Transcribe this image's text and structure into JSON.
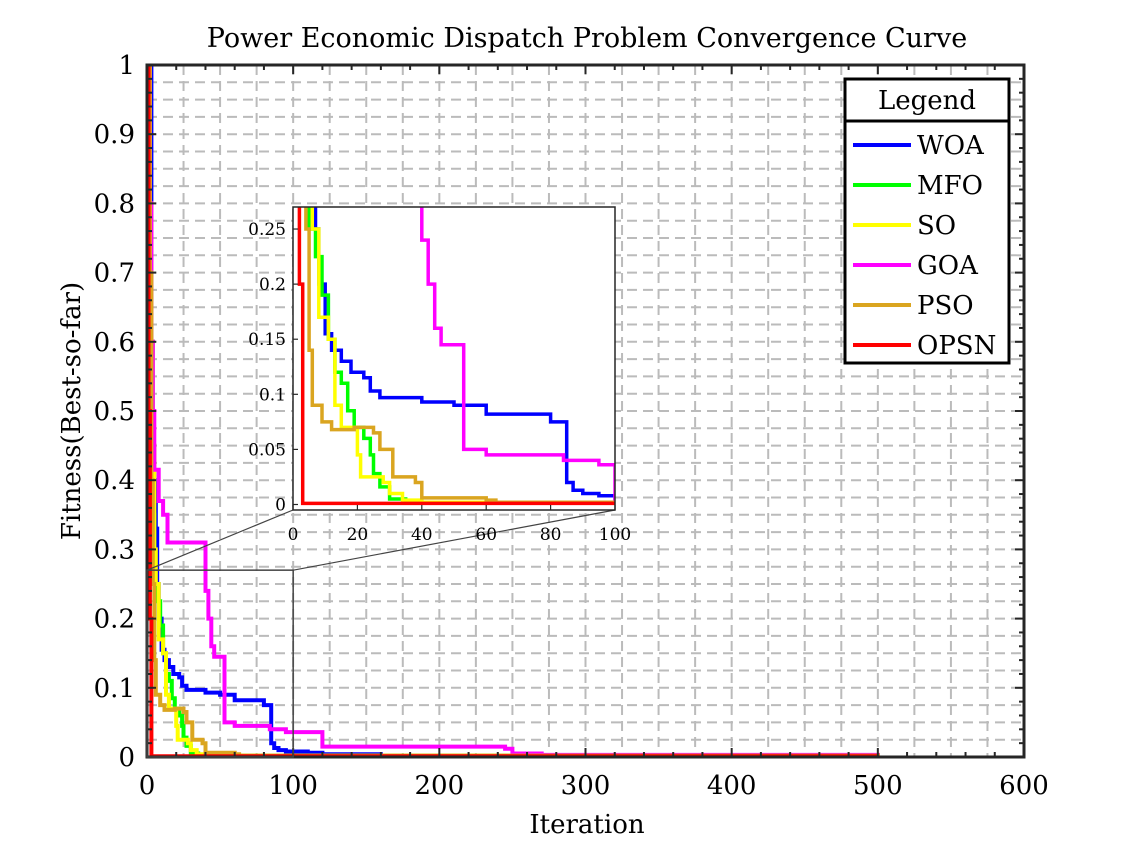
{
  "chart_data": {
    "type": "line",
    "title": "Power Economic Dispatch Problem Convergence Curve",
    "xlabel": "Iteration",
    "ylabel": "Fitness(Best-so-far)",
    "xlim": [
      0,
      600
    ],
    "ylim": [
      0,
      1
    ],
    "xticks": [
      0,
      100,
      200,
      300,
      400,
      500,
      600
    ],
    "yticks": [
      0,
      0.1,
      0.2,
      0.3,
      0.4,
      0.5,
      0.6,
      0.7,
      0.8,
      0.9,
      1
    ],
    "xtick_labels": [
      "0",
      "100",
      "200",
      "300",
      "400",
      "500",
      "600"
    ],
    "ytick_labels": [
      "0",
      "0.1",
      "0.2",
      "0.3",
      "0.4",
      "0.5",
      "0.6",
      "0.7",
      "0.8",
      "0.9",
      "1"
    ],
    "grid": "dashed",
    "legend": {
      "title": "Legend",
      "position": "top-right"
    },
    "series": [
      {
        "name": "WOA",
        "color": "#0000ff",
        "steps": [
          [
            1,
            1.0
          ],
          [
            3,
            0.6
          ],
          [
            4,
            0.45
          ],
          [
            5,
            0.4
          ],
          [
            6,
            0.33
          ],
          [
            7,
            0.25
          ],
          [
            8,
            0.2
          ],
          [
            10,
            0.155
          ],
          [
            12,
            0.14
          ],
          [
            15,
            0.13
          ],
          [
            18,
            0.12
          ],
          [
            22,
            0.115
          ],
          [
            24,
            0.103
          ],
          [
            27,
            0.097
          ],
          [
            40,
            0.093
          ],
          [
            50,
            0.09
          ],
          [
            60,
            0.082
          ],
          [
            80,
            0.075
          ],
          [
            85,
            0.02
          ],
          [
            87,
            0.013
          ],
          [
            90,
            0.01
          ],
          [
            95,
            0.008
          ],
          [
            110,
            0.006
          ],
          [
            120,
            0.004
          ],
          [
            160,
            0.002
          ],
          [
            500,
            0.001
          ]
        ]
      },
      {
        "name": "MFO",
        "color": "#00ff00",
        "steps": [
          [
            1,
            1.0
          ],
          [
            2,
            0.7
          ],
          [
            3,
            0.5
          ],
          [
            4,
            0.35
          ],
          [
            5,
            0.25
          ],
          [
            7,
            0.225
          ],
          [
            9,
            0.19
          ],
          [
            11,
            0.15
          ],
          [
            13,
            0.12
          ],
          [
            15,
            0.11
          ],
          [
            17,
            0.085
          ],
          [
            19,
            0.07
          ],
          [
            22,
            0.06
          ],
          [
            24,
            0.045
          ],
          [
            25,
            0.028
          ],
          [
            27,
            0.016
          ],
          [
            30,
            0.005
          ],
          [
            35,
            0.003
          ],
          [
            40,
            0.002
          ],
          [
            500,
            0.001
          ]
        ]
      },
      {
        "name": "SO",
        "color": "#ffff00",
        "steps": [
          [
            1,
            1.0
          ],
          [
            2,
            0.8
          ],
          [
            3,
            0.6
          ],
          [
            4,
            0.45
          ],
          [
            5,
            0.3
          ],
          [
            6,
            0.25
          ],
          [
            8,
            0.17
          ],
          [
            10,
            0.17
          ],
          [
            11,
            0.15
          ],
          [
            13,
            0.09
          ],
          [
            15,
            0.07
          ],
          [
            17,
            0.07
          ],
          [
            20,
            0.045
          ],
          [
            21,
            0.025
          ],
          [
            28,
            0.02
          ],
          [
            30,
            0.01
          ],
          [
            34,
            0.004
          ],
          [
            40,
            0.002
          ],
          [
            500,
            0.001
          ]
        ]
      },
      {
        "name": "GOA",
        "color": "#ff00ff",
        "steps": [
          [
            1,
            1.0
          ],
          [
            2,
            0.8
          ],
          [
            3,
            0.6
          ],
          [
            4,
            0.5
          ],
          [
            5,
            0.415
          ],
          [
            8,
            0.37
          ],
          [
            11,
            0.35
          ],
          [
            14,
            0.31
          ],
          [
            39,
            0.31
          ],
          [
            40,
            0.24
          ],
          [
            42,
            0.2
          ],
          [
            44,
            0.16
          ],
          [
            46,
            0.145
          ],
          [
            50,
            0.145
          ],
          [
            53,
            0.05
          ],
          [
            60,
            0.045
          ],
          [
            84,
            0.04
          ],
          [
            95,
            0.036
          ],
          [
            120,
            0.015
          ],
          [
            245,
            0.012
          ],
          [
            250,
            0.005
          ],
          [
            270,
            0.003
          ],
          [
            500,
            0.002
          ]
        ]
      },
      {
        "name": "PSO",
        "color": "#daa520",
        "steps": [
          [
            1,
            1.0
          ],
          [
            2,
            0.7
          ],
          [
            3,
            0.4
          ],
          [
            4,
            0.25
          ],
          [
            5,
            0.14
          ],
          [
            6,
            0.09
          ],
          [
            9,
            0.075
          ],
          [
            12,
            0.068
          ],
          [
            19,
            0.07
          ],
          [
            25,
            0.065
          ],
          [
            27,
            0.05
          ],
          [
            31,
            0.025
          ],
          [
            38,
            0.02
          ],
          [
            40,
            0.006
          ],
          [
            60,
            0.004
          ],
          [
            63,
            0.002
          ],
          [
            70,
            0.002
          ],
          [
            500,
            0.001
          ]
        ]
      },
      {
        "name": "OPSN",
        "color": "#ff0000",
        "steps": [
          [
            0,
            1.0
          ],
          [
            1,
            0.5
          ],
          [
            2,
            0.2
          ],
          [
            3,
            0.001
          ],
          [
            500,
            0.001
          ]
        ]
      }
    ],
    "inset": {
      "xlim": [
        0,
        100
      ],
      "ylim": [
        -0.005,
        0.27
      ],
      "xticks": [
        0,
        20,
        40,
        60,
        80,
        100
      ],
      "yticks": [
        0,
        0.05,
        0.1,
        0.15,
        0.2,
        0.25
      ],
      "xtick_labels": [
        "0",
        "20",
        "40",
        "60",
        "80",
        "100"
      ],
      "ytick_labels": [
        "0",
        "0.05",
        "0.1",
        "0.15",
        "0.2",
        "0.25"
      ],
      "zoom_box": {
        "x": [
          0,
          100
        ],
        "y": [
          0,
          0.27
        ]
      }
    }
  }
}
